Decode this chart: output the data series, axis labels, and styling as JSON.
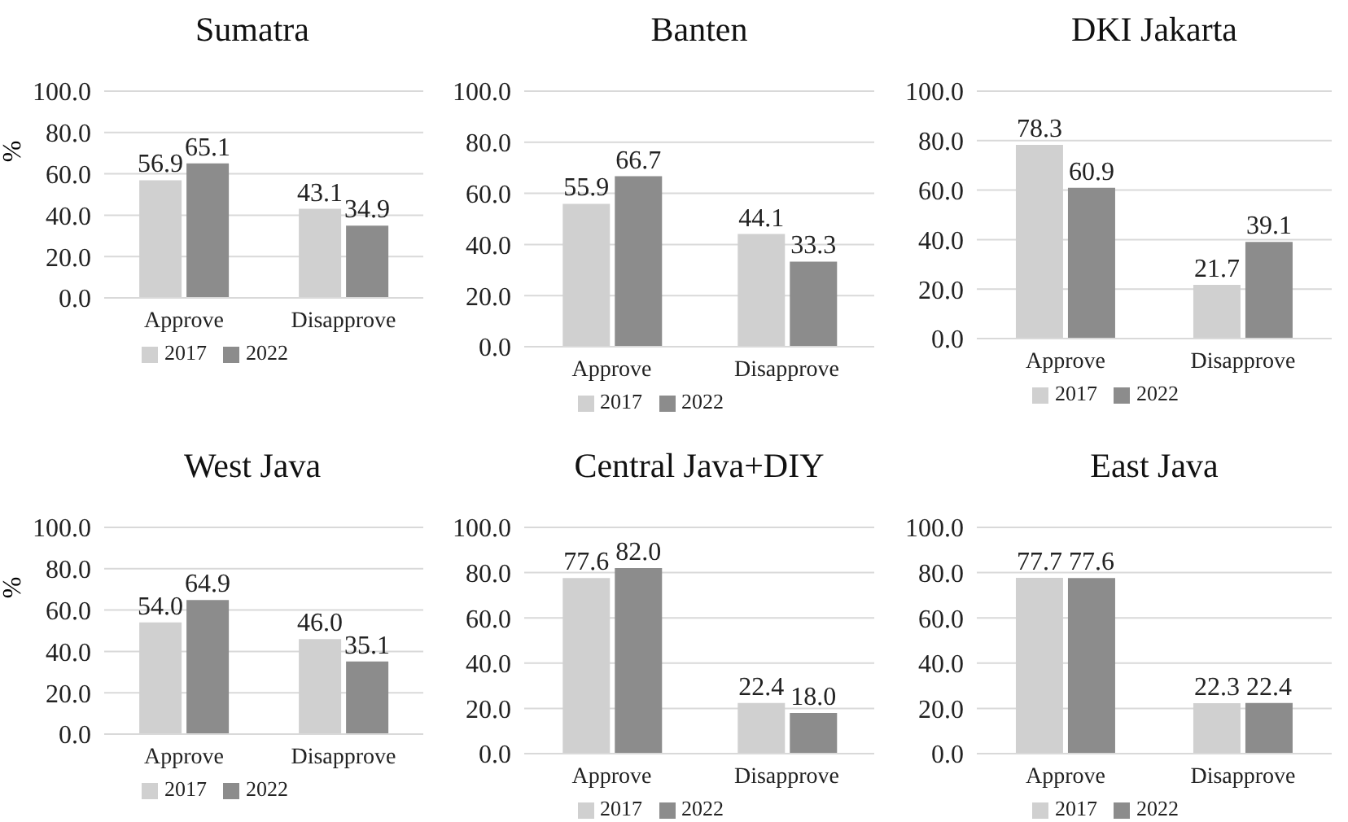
{
  "chart_data": [
    {
      "type": "bar",
      "title": "Sumatra",
      "ylabel": "%",
      "categories": [
        "Approve",
        "Disapprove"
      ],
      "series": [
        {
          "name": "2017",
          "color": "#d0d0d0",
          "values": [
            56.9,
            43.1
          ],
          "value_labels": [
            "56.9",
            "43.1"
          ]
        },
        {
          "name": "2022",
          "color": "#8c8c8c",
          "values": [
            65.1,
            34.9
          ],
          "value_labels": [
            "65.1",
            "34.9"
          ]
        }
      ],
      "ylim": [
        0,
        100
      ],
      "yticks": [
        {
          "value": 0,
          "label": "0.0"
        },
        {
          "value": 20,
          "label": "20.0"
        },
        {
          "value": 40,
          "label": "40.0"
        },
        {
          "value": 60,
          "label": "60.0"
        },
        {
          "value": 80,
          "label": "80.0"
        },
        {
          "value": 100,
          "label": "100.0"
        }
      ],
      "grid": "y",
      "legend": "bottom"
    },
    {
      "type": "bar",
      "title": "Banten",
      "categories": [
        "Approve",
        "Disapprove"
      ],
      "series": [
        {
          "name": "2017",
          "color": "#d0d0d0",
          "values": [
            55.9,
            44.1
          ],
          "value_labels": [
            "55.9",
            "44.1"
          ]
        },
        {
          "name": "2022",
          "color": "#8c8c8c",
          "values": [
            66.7,
            33.3
          ],
          "value_labels": [
            "66.7",
            "33.3"
          ]
        }
      ],
      "ylim": [
        0,
        100
      ],
      "yticks": [
        {
          "value": 0,
          "label": "0.0"
        },
        {
          "value": 20,
          "label": "20.0"
        },
        {
          "value": 40,
          "label": "40.0"
        },
        {
          "value": 60,
          "label": "60.0"
        },
        {
          "value": 80,
          "label": "80.0"
        },
        {
          "value": 100,
          "label": "100.0"
        }
      ],
      "grid": "y",
      "legend": "bottom"
    },
    {
      "type": "bar",
      "title": "DKI Jakarta",
      "categories": [
        "Approve",
        "Disapprove"
      ],
      "series": [
        {
          "name": "2017",
          "color": "#d0d0d0",
          "values": [
            78.3,
            21.7
          ],
          "value_labels": [
            "78.3",
            "21.7"
          ]
        },
        {
          "name": "2022",
          "color": "#8c8c8c",
          "values": [
            60.9,
            39.1
          ],
          "value_labels": [
            "60.9",
            "39.1"
          ]
        }
      ],
      "ylim": [
        0,
        100
      ],
      "yticks": [
        {
          "value": 0,
          "label": "0.0"
        },
        {
          "value": 20,
          "label": "20.0"
        },
        {
          "value": 40,
          "label": "40.0"
        },
        {
          "value": 60,
          "label": "60.0"
        },
        {
          "value": 80,
          "label": "80.0"
        },
        {
          "value": 100,
          "label": "100.0"
        }
      ],
      "grid": "y",
      "legend": "bottom"
    },
    {
      "type": "bar",
      "title": "West Java",
      "ylabel": "%",
      "categories": [
        "Approve",
        "Disapprove"
      ],
      "series": [
        {
          "name": "2017",
          "color": "#d0d0d0",
          "values": [
            54.0,
            46.0
          ],
          "value_labels": [
            "54.0",
            "46.0"
          ]
        },
        {
          "name": "2022",
          "color": "#8c8c8c",
          "values": [
            64.9,
            35.1
          ],
          "value_labels": [
            "64.9",
            "35.1"
          ]
        }
      ],
      "ylim": [
        0,
        100
      ],
      "yticks": [
        {
          "value": 0,
          "label": "0.0"
        },
        {
          "value": 20,
          "label": "20.0"
        },
        {
          "value": 40,
          "label": "40.0"
        },
        {
          "value": 60,
          "label": "60.0"
        },
        {
          "value": 80,
          "label": "80.0"
        },
        {
          "value": 100,
          "label": "100.0"
        }
      ],
      "grid": "y",
      "legend": "bottom"
    },
    {
      "type": "bar",
      "title": "Central Java+DIY",
      "categories": [
        "Approve",
        "Disapprove"
      ],
      "series": [
        {
          "name": "2017",
          "color": "#d0d0d0",
          "values": [
            77.6,
            22.4
          ],
          "value_labels": [
            "77.6",
            "22.4"
          ]
        },
        {
          "name": "2022",
          "color": "#8c8c8c",
          "values": [
            82.0,
            18.0
          ],
          "value_labels": [
            "82.0",
            "18.0"
          ]
        }
      ],
      "ylim": [
        0,
        100
      ],
      "yticks": [
        {
          "value": 0,
          "label": "0.0"
        },
        {
          "value": 20,
          "label": "20.0"
        },
        {
          "value": 40,
          "label": "40.0"
        },
        {
          "value": 60,
          "label": "60.0"
        },
        {
          "value": 80,
          "label": "80.0"
        },
        {
          "value": 100,
          "label": "100.0"
        }
      ],
      "grid": "y",
      "legend": "bottom"
    },
    {
      "type": "bar",
      "title": "East Java",
      "categories": [
        "Approve",
        "Disapprove"
      ],
      "series": [
        {
          "name": "2017",
          "color": "#d0d0d0",
          "values": [
            77.7,
            22.3
          ],
          "value_labels": [
            "77.7",
            "22.3"
          ]
        },
        {
          "name": "2022",
          "color": "#8c8c8c",
          "values": [
            77.6,
            22.4
          ],
          "value_labels": [
            "77.6",
            "22.4"
          ]
        }
      ],
      "ylim": [
        0,
        100
      ],
      "yticks": [
        {
          "value": 0,
          "label": "0.0"
        },
        {
          "value": 20,
          "label": "20.0"
        },
        {
          "value": 40,
          "label": "40.0"
        },
        {
          "value": 60,
          "label": "60.0"
        },
        {
          "value": 80,
          "label": "80.0"
        },
        {
          "value": 100,
          "label": "100.0"
        }
      ],
      "grid": "y",
      "legend": "bottom"
    }
  ]
}
